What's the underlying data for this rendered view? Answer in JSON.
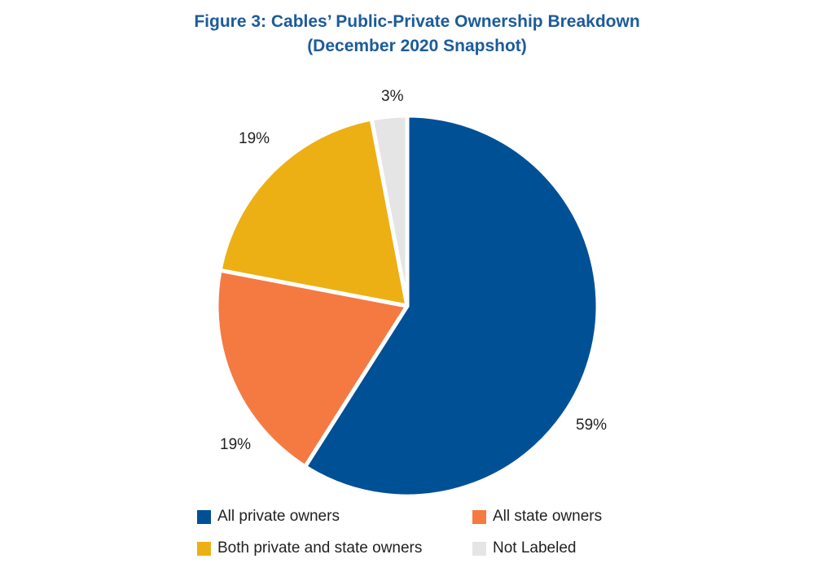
{
  "chart_data": {
    "type": "pie",
    "title": "Figure 3: Cables’ Public-Private Ownership Breakdown",
    "subtitle": "(December 2020 Snapshot)",
    "legend_placement": "bottom",
    "slices": [
      {
        "name": "All private owners",
        "value": 59,
        "label": "59%",
        "color": "#005096"
      },
      {
        "name": "All state owners",
        "value": 19,
        "label": "19%",
        "color": "#f47a42"
      },
      {
        "name": "Both private and state owners",
        "value": 19,
        "label": "19%",
        "color": "#ecb015"
      },
      {
        "name": "Not Labeled",
        "value": 3,
        "label": "3%",
        "color": "#e5e5e5"
      }
    ]
  }
}
